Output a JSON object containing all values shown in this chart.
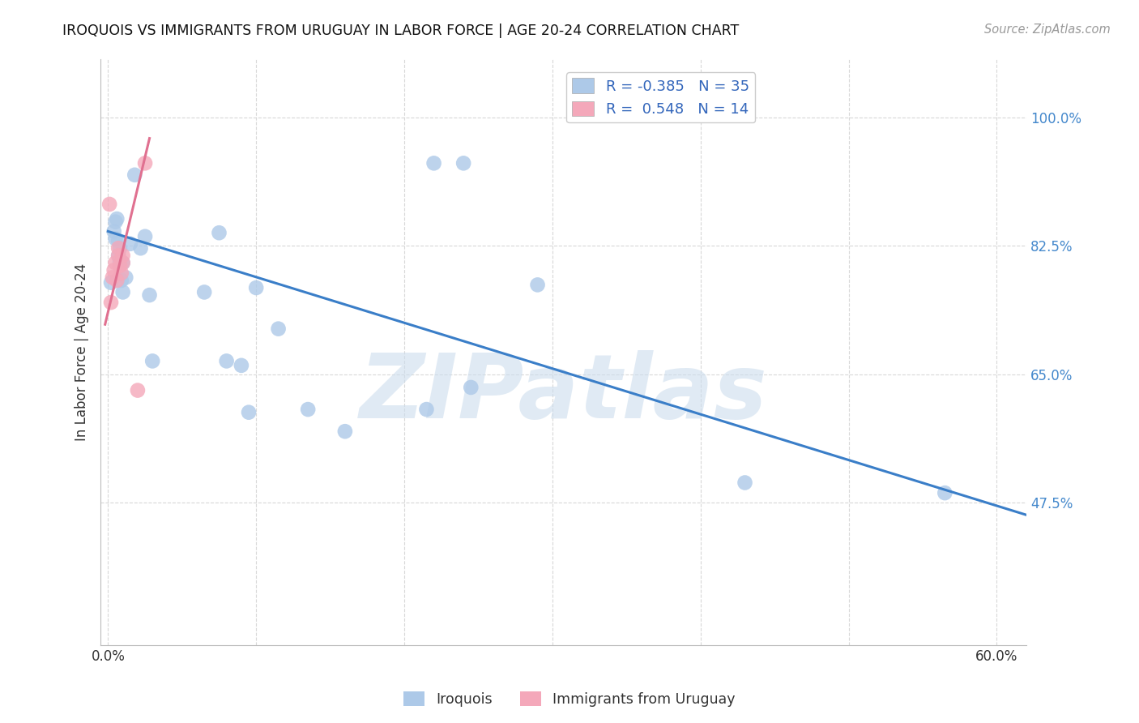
{
  "title": "IROQUOIS VS IMMIGRANTS FROM URUGUAY IN LABOR FORCE | AGE 20-24 CORRELATION CHART",
  "source_text": "Source: ZipAtlas.com",
  "ylabel": "In Labor Force | Age 20-24",
  "xlim": [
    -0.005,
    0.62
  ],
  "ylim": [
    0.28,
    1.08
  ],
  "xtick_positions": [
    0.0,
    0.1,
    0.2,
    0.3,
    0.4,
    0.5,
    0.6
  ],
  "xticklabels": [
    "0.0%",
    "",
    "",
    "",
    "",
    "",
    "60.0%"
  ],
  "ytick_positions": [
    0.475,
    0.65,
    0.825,
    1.0
  ],
  "yticklabels": [
    "47.5%",
    "65.0%",
    "82.5%",
    "100.0%"
  ],
  "legend1_label": "R = -0.385   N = 35",
  "legend2_label": "R =  0.548   N = 14",
  "iroquois_color": "#adc9e8",
  "uruguay_color": "#f4a8ba",
  "iroquois_line_color": "#3a7ec8",
  "uruguay_line_color": "#e07090",
  "watermark": "ZIPatlas",
  "watermark_color": "#ccdded",
  "iroquois_x": [
    0.002,
    0.004,
    0.005,
    0.005,
    0.006,
    0.007,
    0.007,
    0.008,
    0.008,
    0.009,
    0.01,
    0.01,
    0.012,
    0.015,
    0.018,
    0.022,
    0.025,
    0.028,
    0.03,
    0.065,
    0.075,
    0.08,
    0.09,
    0.095,
    0.1,
    0.115,
    0.135,
    0.16,
    0.215,
    0.22,
    0.24,
    0.245,
    0.29,
    0.43,
    0.565
  ],
  "iroquois_y": [
    0.775,
    0.845,
    0.835,
    0.858,
    0.862,
    0.812,
    0.832,
    0.803,
    0.822,
    0.778,
    0.802,
    0.762,
    0.782,
    0.828,
    0.922,
    0.822,
    0.838,
    0.758,
    0.668,
    0.762,
    0.843,
    0.668,
    0.662,
    0.598,
    0.768,
    0.712,
    0.602,
    0.572,
    0.602,
    0.938,
    0.938,
    0.632,
    0.772,
    0.502,
    0.488
  ],
  "uruguay_x": [
    0.001,
    0.002,
    0.003,
    0.004,
    0.005,
    0.006,
    0.007,
    0.007,
    0.008,
    0.009,
    0.01,
    0.01,
    0.02,
    0.025
  ],
  "uruguay_y": [
    0.882,
    0.748,
    0.782,
    0.792,
    0.802,
    0.778,
    0.812,
    0.822,
    0.798,
    0.788,
    0.802,
    0.812,
    0.628,
    0.938
  ],
  "iroquois_line_x": [
    0.0,
    0.62
  ],
  "iroquois_line_y": [
    0.845,
    0.458
  ],
  "uruguay_line_x": [
    -0.002,
    0.028
  ],
  "uruguay_line_y": [
    0.718,
    0.972
  ],
  "grid_color": "#d8d8d8",
  "bg_color": "#ffffff",
  "title_fontsize": 12.5,
  "tick_fontsize": 12,
  "label_fontsize": 12
}
